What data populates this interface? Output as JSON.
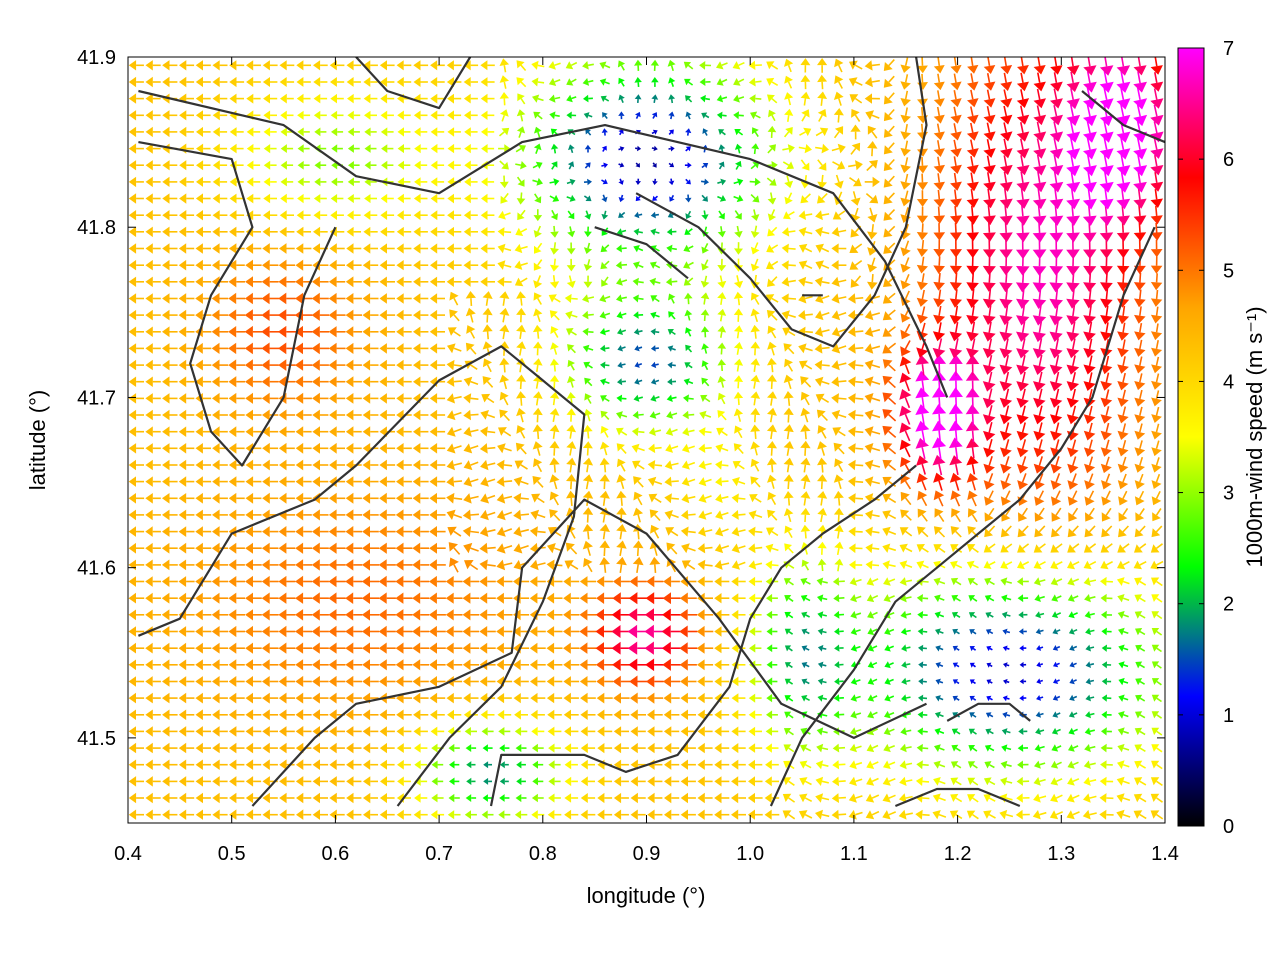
{
  "chart_data": {
    "type": "quiver",
    "xlabel": "longitude (°)",
    "ylabel": "latitude (°)",
    "colorbar_label": "1000m-wind speed (m s⁻¹)",
    "xlim": [
      0.4,
      1.4
    ],
    "ylim": [
      41.45,
      41.9
    ],
    "xticks": [
      "0.4",
      "0.5",
      "0.6",
      "0.7",
      "0.8",
      "0.9",
      "1.0",
      "1.1",
      "1.2",
      "1.3",
      "1.4"
    ],
    "yticks": [
      "41.5",
      "41.6",
      "41.7",
      "41.8",
      "41.9"
    ],
    "colorbar_range": [
      0,
      7
    ],
    "colorbar_ticks": [
      "0",
      "1",
      "2",
      "3",
      "4",
      "5",
      "6",
      "7"
    ],
    "colormap": [
      "#000000",
      "#0000ff",
      "#00ff00",
      "#ffff00",
      "#ffa500",
      "#ff0000",
      "#ff00ff"
    ],
    "grid": false,
    "field_regions": [
      {
        "area": "west and south-west land",
        "lon_range": [
          0.4,
          0.85
        ],
        "lat_range": [
          41.45,
          41.78
        ],
        "speed_ms": 5.0,
        "direction": "easterly (arrows point west)"
      },
      {
        "area": "north-west coast",
        "lon_range": [
          0.4,
          0.75
        ],
        "lat_range": [
          41.78,
          41.9
        ],
        "speed_ms": 3.5,
        "direction": "easterly"
      },
      {
        "area": "north-central valley",
        "lon_range": [
          0.75,
          1.1
        ],
        "lat_range": [
          41.76,
          41.9
        ],
        "speed_ms": 1.0,
        "direction": "variable, weak"
      },
      {
        "area": "central plain",
        "lon_range": [
          0.75,
          1.0
        ],
        "lat_range": [
          41.62,
          41.76
        ],
        "speed_ms": 2.2,
        "direction": "north-westward"
      },
      {
        "area": "east jet",
        "lon_range": [
          1.15,
          1.4
        ],
        "lat_range": [
          41.62,
          41.9
        ],
        "speed_ms": 6.2,
        "direction": "northerly (arrows point south)"
      },
      {
        "area": "east core maximum",
        "lon": 1.18,
        "lat": 41.68,
        "speed_ms": 7.0,
        "direction": "southerly (arrows point north)"
      },
      {
        "area": "south-east basin",
        "lon_range": [
          1.05,
          1.4
        ],
        "lat_range": [
          41.45,
          41.6
        ],
        "speed_ms": 1.5,
        "direction": "easterly, weak"
      },
      {
        "area": "local maximum south-central",
        "lon": 0.9,
        "lat": 41.56,
        "speed_ms": 6.5,
        "direction": "easterly"
      }
    ],
    "contours_lonlat": [
      [
        [
          0.41,
          41.88
        ],
        [
          0.55,
          41.86
        ],
        [
          0.62,
          41.83
        ],
        [
          0.7,
          41.82
        ],
        [
          0.78,
          41.85
        ],
        [
          0.86,
          41.86
        ],
        [
          0.93,
          41.85
        ],
        [
          1.0,
          41.84
        ],
        [
          1.08,
          41.82
        ],
        [
          1.13,
          41.78
        ],
        [
          1.17,
          41.73
        ],
        [
          1.19,
          41.7
        ]
      ],
      [
        [
          0.41,
          41.85
        ],
        [
          0.5,
          41.84
        ],
        [
          0.52,
          41.8
        ],
        [
          0.48,
          41.76
        ],
        [
          0.46,
          41.72
        ],
        [
          0.48,
          41.68
        ],
        [
          0.51,
          41.66
        ],
        [
          0.55,
          41.7
        ],
        [
          0.57,
          41.76
        ],
        [
          0.6,
          41.8
        ]
      ],
      [
        [
          0.41,
          41.56
        ],
        [
          0.45,
          41.57
        ],
        [
          0.5,
          41.62
        ],
        [
          0.58,
          41.64
        ],
        [
          0.62,
          41.66
        ],
        [
          0.7,
          41.71
        ],
        [
          0.76,
          41.73
        ],
        [
          0.8,
          41.71
        ],
        [
          0.84,
          41.69
        ],
        [
          0.83,
          41.63
        ],
        [
          0.8,
          41.58
        ],
        [
          0.76,
          41.53
        ],
        [
          0.71,
          41.5
        ],
        [
          0.66,
          41.46
        ]
      ],
      [
        [
          0.52,
          41.46
        ],
        [
          0.58,
          41.5
        ],
        [
          0.62,
          41.52
        ],
        [
          0.7,
          41.53
        ],
        [
          0.77,
          41.55
        ],
        [
          0.78,
          41.6
        ],
        [
          0.84,
          41.64
        ],
        [
          0.9,
          41.62
        ],
        [
          0.97,
          41.57
        ],
        [
          1.03,
          41.52
        ],
        [
          1.1,
          41.5
        ],
        [
          1.17,
          41.52
        ]
      ],
      [
        [
          0.75,
          41.46
        ],
        [
          0.76,
          41.49
        ],
        [
          0.8,
          41.49
        ],
        [
          0.84,
          41.49
        ],
        [
          0.88,
          41.48
        ],
        [
          0.93,
          41.49
        ],
        [
          0.98,
          41.53
        ],
        [
          1.0,
          41.57
        ],
        [
          1.03,
          41.6
        ],
        [
          1.07,
          41.62
        ],
        [
          1.12,
          41.64
        ],
        [
          1.16,
          41.66
        ]
      ],
      [
        [
          1.02,
          41.46
        ],
        [
          1.05,
          41.5
        ],
        [
          1.1,
          41.54
        ],
        [
          1.14,
          41.58
        ],
        [
          1.18,
          41.6
        ],
        [
          1.22,
          41.62
        ],
        [
          1.26,
          41.64
        ],
        [
          1.3,
          41.67
        ],
        [
          1.33,
          41.7
        ],
        [
          1.36,
          41.76
        ],
        [
          1.39,
          41.8
        ]
      ],
      [
        [
          0.89,
          41.82
        ],
        [
          0.95,
          41.8
        ],
        [
          1.0,
          41.77
        ],
        [
          1.04,
          41.74
        ],
        [
          1.08,
          41.73
        ],
        [
          1.12,
          41.76
        ],
        [
          1.15,
          41.8
        ],
        [
          1.17,
          41.86
        ],
        [
          1.16,
          41.9
        ]
      ],
      [
        [
          0.62,
          41.9
        ],
        [
          0.65,
          41.88
        ],
        [
          0.7,
          41.87
        ],
        [
          0.73,
          41.9
        ]
      ],
      [
        [
          0.85,
          41.8
        ],
        [
          0.9,
          41.79
        ],
        [
          0.94,
          41.77
        ]
      ],
      [
        [
          1.19,
          41.51
        ],
        [
          1.22,
          41.52
        ],
        [
          1.25,
          41.52
        ],
        [
          1.27,
          41.51
        ]
      ],
      [
        [
          1.14,
          41.46
        ],
        [
          1.18,
          41.47
        ],
        [
          1.22,
          41.47
        ],
        [
          1.26,
          41.46
        ]
      ],
      [
        [
          1.05,
          41.76
        ],
        [
          1.07,
          41.76
        ]
      ],
      [
        [
          1.32,
          41.88
        ],
        [
          1.36,
          41.86
        ],
        [
          1.4,
          41.85
        ]
      ]
    ]
  }
}
